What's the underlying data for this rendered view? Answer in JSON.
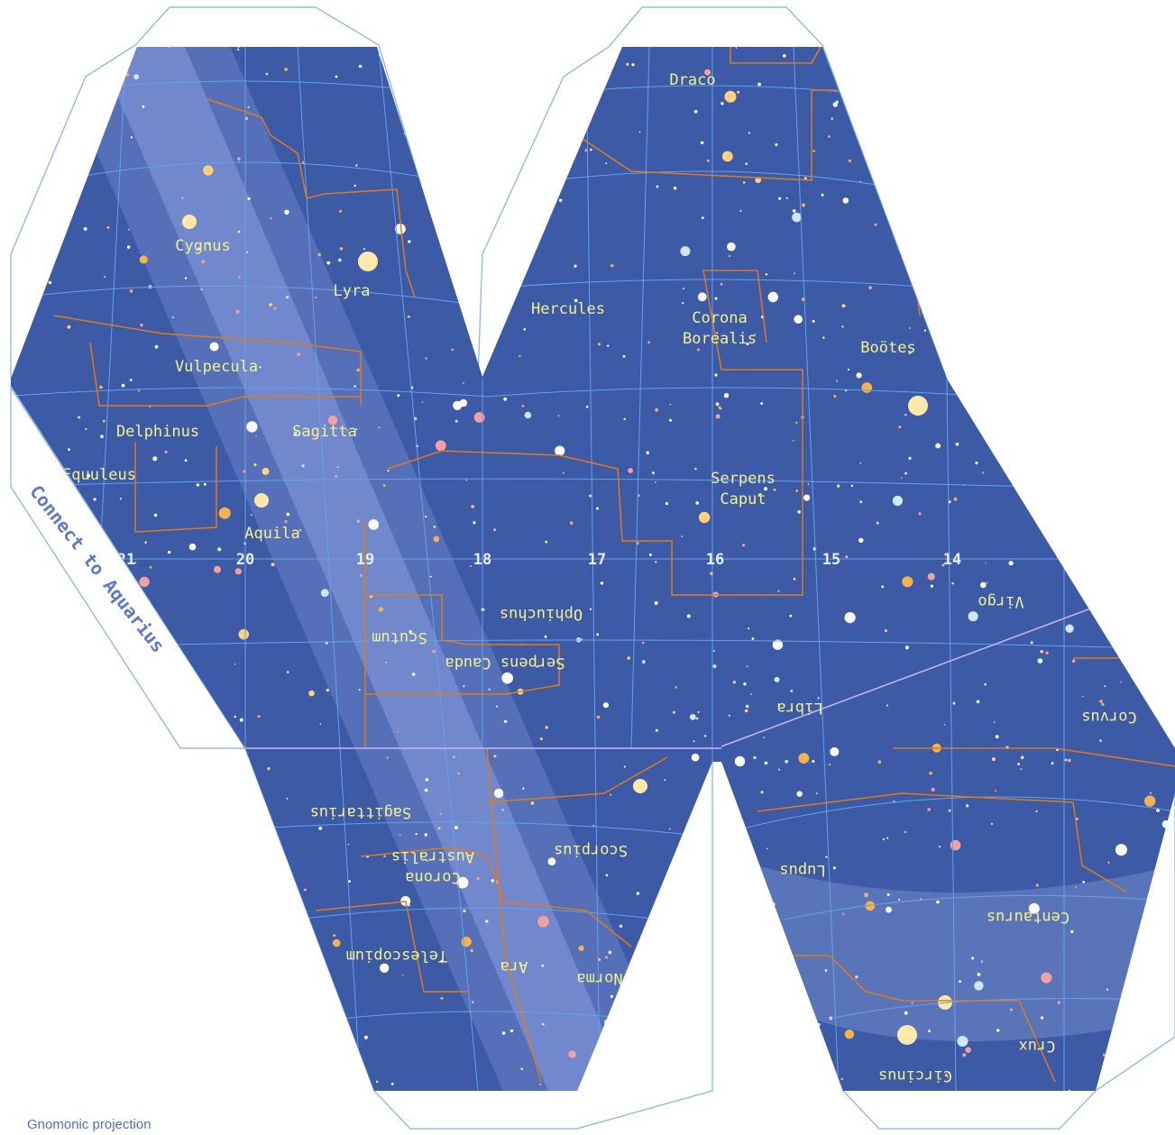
{
  "map": {
    "hour_labels": [
      "21",
      "20",
      "19",
      "18",
      "17",
      "16",
      "15",
      "14"
    ],
    "constellations": [
      [
        "Cygnus"
      ],
      [
        "Lyra"
      ],
      [
        "Vulpecula"
      ],
      [
        "Delphinus"
      ],
      [
        "Sagitta"
      ],
      [
        "Equuleus"
      ],
      [
        "Aquila"
      ],
      [
        "Draco"
      ],
      [
        "Hercules"
      ],
      [
        "Corona",
        "Borealis"
      ],
      [
        "Boötes"
      ],
      [
        "Serpens",
        "Caput"
      ],
      [
        "Ophiuchus"
      ],
      [
        "Scutum"
      ],
      [
        "Serpens Cauda"
      ],
      [
        "Libra"
      ],
      [
        "Virgo"
      ],
      [
        "Corvus"
      ],
      [
        "Sagittarius"
      ],
      [
        "Scorpius"
      ],
      [
        "Corona",
        "Australis"
      ],
      [
        "Lupus"
      ],
      [
        "Centaurus"
      ],
      [
        "Telescopium"
      ],
      [
        "Ara"
      ],
      [
        "Norma"
      ],
      [
        "Crux"
      ],
      [
        "Circinus"
      ]
    ],
    "connect_label": "Connect to Aquarius",
    "projection_label": "Gnomonic projection"
  }
}
